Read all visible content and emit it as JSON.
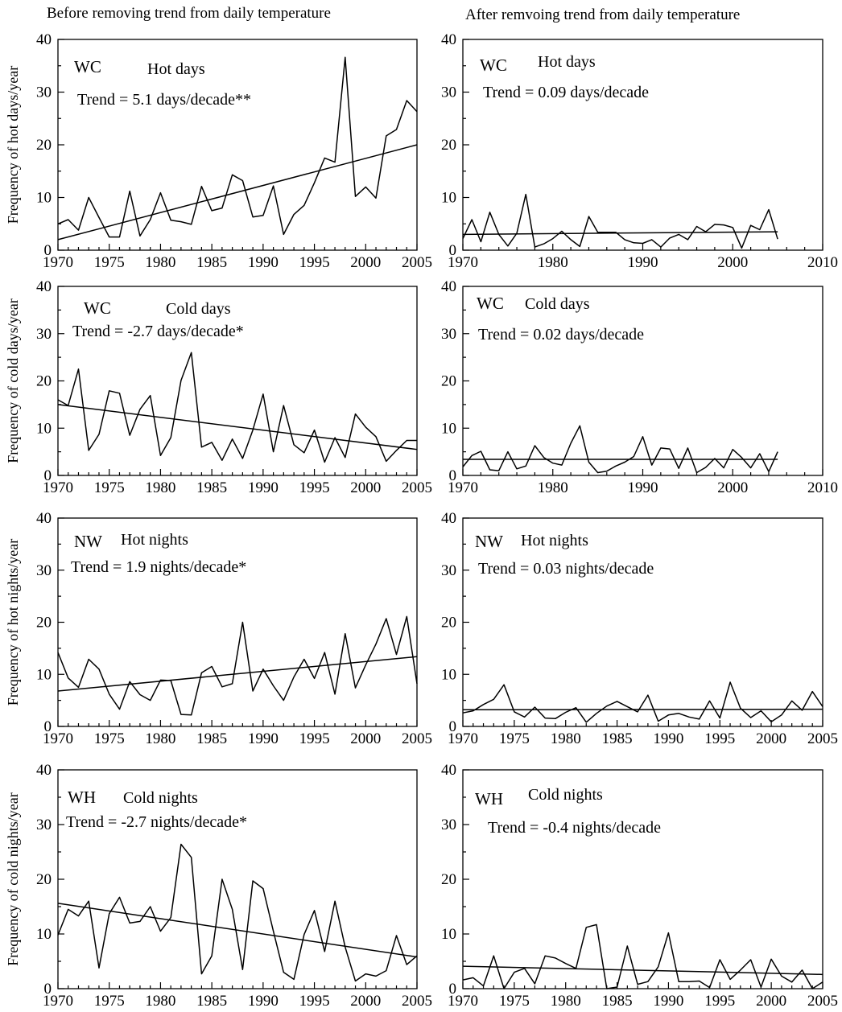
{
  "headers": {
    "left": "Before removing trend from daily temperature",
    "right": "After remvoing trend from daily temperature"
  },
  "chart_data": [
    {
      "type": "line",
      "region": "WC",
      "title": "Hot days",
      "trend_text": "Trend = 5.1 days/decade**",
      "ylabel": "Frequency of hot days/year",
      "xlim": [
        1970,
        2005
      ],
      "ylim": [
        0,
        40
      ],
      "xticks": [
        1970,
        1975,
        1980,
        1985,
        1990,
        1995,
        2000,
        2005
      ],
      "yticks": [
        0,
        10,
        20,
        30,
        40
      ],
      "x": [
        1970,
        1971,
        1972,
        1973,
        1974,
        1975,
        1976,
        1977,
        1978,
        1979,
        1980,
        1981,
        1982,
        1983,
        1984,
        1985,
        1986,
        1987,
        1988,
        1989,
        1990,
        1991,
        1992,
        1993,
        1994,
        1995,
        1996,
        1997,
        1998,
        1999,
        2000,
        2001,
        2002,
        2003,
        2004,
        2005
      ],
      "values": [
        5,
        5.8,
        3.8,
        10,
        6.2,
        2.5,
        2.5,
        11.2,
        2.7,
        5.8,
        10.9,
        5.7,
        5.4,
        4.9,
        12.1,
        7.5,
        8,
        14.3,
        13.2,
        6.3,
        6.6,
        12.2,
        3,
        6.8,
        8.5,
        12.8,
        17.5,
        16.7,
        36.6,
        10.2,
        12,
        9.9,
        21.7,
        22.9,
        28.4,
        26.3
      ],
      "trend_line": {
        "x": [
          1970,
          2005
        ],
        "y": [
          2,
          20
        ]
      }
    },
    {
      "type": "line",
      "region": "WC",
      "title": "Hot days",
      "trend_text": "Trend =  0.09 days/decade",
      "ylabel": "",
      "xlim": [
        1970,
        2010
      ],
      "ylim": [
        0,
        40
      ],
      "xticks": [
        1970,
        1980,
        1990,
        2000,
        2010
      ],
      "yticks": [
        0,
        10,
        20,
        30,
        40
      ],
      "x": [
        1970,
        1971,
        1972,
        1973,
        1974,
        1975,
        1976,
        1977,
        1978,
        1979,
        1980,
        1981,
        1982,
        1983,
        1984,
        1985,
        1986,
        1987,
        1988,
        1989,
        1990,
        1991,
        1992,
        1993,
        1994,
        1995,
        1996,
        1997,
        1998,
        1999,
        2000,
        2001,
        2002,
        2003,
        2004,
        2005
      ],
      "values": [
        2.2,
        5.8,
        1.6,
        7.2,
        3,
        0.8,
        3.2,
        10.6,
        0.6,
        1.2,
        2.2,
        3.6,
        2,
        0.7,
        6.4,
        3.4,
        3.4,
        3.4,
        2,
        1.4,
        1.3,
        2,
        0.6,
        2.3,
        3,
        2,
        4.5,
        3.5,
        4.9,
        4.8,
        4.3,
        0.4,
        4.7,
        3.9,
        7.7,
        2.1
      ],
      "trend_line": {
        "x": [
          1970,
          2005
        ],
        "y": [
          3,
          3.5
        ]
      }
    },
    {
      "type": "line",
      "region": "WC",
      "title": "Cold days",
      "trend_text": "Trend = -2.7 days/decade*",
      "ylabel": "Frequency of cold days/year",
      "xlim": [
        1970,
        2005
      ],
      "ylim": [
        0,
        40
      ],
      "xticks": [
        1970,
        1975,
        1980,
        1985,
        1990,
        1995,
        2000,
        2005
      ],
      "yticks": [
        0,
        10,
        20,
        30,
        40
      ],
      "x": [
        1970,
        1971,
        1972,
        1973,
        1974,
        1975,
        1976,
        1977,
        1978,
        1979,
        1980,
        1981,
        1982,
        1983,
        1984,
        1985,
        1986,
        1987,
        1988,
        1989,
        1990,
        1991,
        1992,
        1993,
        1994,
        1995,
        1996,
        1997,
        1998,
        1999,
        2000,
        2001,
        2002,
        2003,
        2004,
        2005
      ],
      "values": [
        16,
        14.8,
        22.5,
        5.3,
        8.7,
        17.9,
        17.4,
        8.5,
        14,
        16.9,
        4.2,
        8,
        20.1,
        26,
        6,
        7,
        3.2,
        7.7,
        3.6,
        9.6,
        17.2,
        5,
        14.8,
        6.5,
        4.8,
        9.6,
        2.8,
        8,
        3.8,
        13,
        10.2,
        8.2,
        3,
        5.3,
        7.4,
        7.4
      ],
      "trend_line": {
        "x": [
          1970,
          2005
        ],
        "y": [
          15,
          5.5
        ]
      }
    },
    {
      "type": "line",
      "region": "WC",
      "title": "Cold days",
      "trend_text": "Trend = 0.02 days/decade",
      "ylabel": "",
      "xlim": [
        1970,
        2010
      ],
      "ylim": [
        0,
        40
      ],
      "xticks": [
        1970,
        1980,
        1990,
        2000,
        2010
      ],
      "yticks": [
        0,
        10,
        20,
        30,
        40
      ],
      "x": [
        1970,
        1971,
        1972,
        1973,
        1974,
        1975,
        1976,
        1977,
        1978,
        1979,
        1980,
        1981,
        1982,
        1983,
        1984,
        1985,
        1986,
        1987,
        1988,
        1989,
        1990,
        1991,
        1992,
        1993,
        1994,
        1995,
        1996,
        1997,
        1998,
        1999,
        2000,
        2001,
        2002,
        2003,
        2004,
        2005
      ],
      "values": [
        1.8,
        4.2,
        5.1,
        1.2,
        1,
        5,
        1.4,
        2,
        6.3,
        3.8,
        2.6,
        2.2,
        6.8,
        10.5,
        2.8,
        0.6,
        0.9,
        2,
        2.8,
        4,
        8.2,
        2.2,
        5.8,
        5.6,
        1.5,
        5.8,
        0.6,
        1.7,
        3.6,
        1.6,
        5.5,
        3.8,
        1.6,
        4.6,
        0.8,
        5
      ],
      "trend_line": {
        "x": [
          1970,
          2005
        ],
        "y": [
          3.4,
          3.4
        ]
      }
    },
    {
      "type": "line",
      "region": "NW",
      "title": "Hot nights",
      "trend_text": "Trend =  1.9 nights/decade*",
      "ylabel": "Frequency of hot nights/year",
      "xlim": [
        1970,
        2005
      ],
      "ylim": [
        0,
        40
      ],
      "xticks": [
        1970,
        1975,
        1980,
        1985,
        1990,
        1995,
        2000,
        2005
      ],
      "yticks": [
        0,
        10,
        20,
        30,
        40
      ],
      "x": [
        1970,
        1971,
        1972,
        1973,
        1974,
        1975,
        1976,
        1977,
        1978,
        1979,
        1980,
        1981,
        1982,
        1983,
        1984,
        1985,
        1986,
        1987,
        1988,
        1989,
        1990,
        1991,
        1992,
        1993,
        1994,
        1995,
        1996,
        1997,
        1998,
        1999,
        2000,
        2001,
        2002,
        2003,
        2004,
        2005
      ],
      "values": [
        14.2,
        9.3,
        7.5,
        12.9,
        11,
        6.2,
        3.3,
        8.6,
        6.1,
        5,
        8.9,
        8.8,
        2.3,
        2.2,
        10.3,
        11.5,
        7.6,
        8.2,
        20,
        6.8,
        11,
        7.8,
        5,
        9.5,
        12.9,
        9.2,
        14.2,
        6.2,
        17.8,
        7.4,
        11.8,
        15.8,
        20.7,
        13.8,
        21.1,
        8.2
      ],
      "trend_line": {
        "x": [
          1970,
          2005
        ],
        "y": [
          6.8,
          13.4
        ]
      }
    },
    {
      "type": "line",
      "region": "NW",
      "title": "Hot nights",
      "trend_text": "Trend = 0.03 nights/decade",
      "ylabel": "",
      "xlim": [
        1970,
        2005
      ],
      "ylim": [
        0,
        40
      ],
      "xticks": [
        1970,
        1975,
        1980,
        1985,
        1990,
        1995,
        2000,
        2005
      ],
      "yticks": [
        0,
        10,
        20,
        30,
        40
      ],
      "x": [
        1970,
        1971,
        1972,
        1973,
        1974,
        1975,
        1976,
        1977,
        1978,
        1979,
        1980,
        1981,
        1982,
        1983,
        1984,
        1985,
        1986,
        1987,
        1988,
        1989,
        1990,
        1991,
        1992,
        1993,
        1994,
        1995,
        1996,
        1997,
        1998,
        1999,
        2000,
        2001,
        2002,
        2003,
        2004,
        2005
      ],
      "values": [
        2.6,
        3,
        4.2,
        5.2,
        8,
        2.8,
        1.8,
        3.7,
        1.6,
        1.5,
        2.7,
        3.6,
        0.8,
        2.5,
        3.9,
        4.8,
        3.8,
        2.8,
        6,
        1,
        2.2,
        2.5,
        1.8,
        1.4,
        4.9,
        1.6,
        8.5,
        3.5,
        1.7,
        3,
        0.9,
        2.2,
        4.9,
        3.1,
        6.7,
        3.8
      ],
      "trend_line": {
        "x": [
          1970,
          2005
        ],
        "y": [
          3.2,
          3.3
        ]
      }
    },
    {
      "type": "line",
      "region": "WH",
      "title": "Cold nights",
      "trend_text": "Trend =  -2.7 nights/decade*",
      "ylabel": "Frequency of cold nights/year",
      "xlim": [
        1970,
        2005
      ],
      "ylim": [
        0,
        40
      ],
      "xticks": [
        1970,
        1975,
        1980,
        1985,
        1990,
        1995,
        2000,
        2005
      ],
      "yticks": [
        0,
        10,
        20,
        30,
        40
      ],
      "x": [
        1970,
        1971,
        1972,
        1973,
        1974,
        1975,
        1976,
        1977,
        1978,
        1979,
        1980,
        1981,
        1982,
        1983,
        1984,
        1985,
        1986,
        1987,
        1988,
        1989,
        1990,
        1991,
        1992,
        1993,
        1994,
        1995,
        1996,
        1997,
        1998,
        1999,
        2000,
        2001,
        2002,
        2003,
        2004,
        2005
      ],
      "values": [
        9.8,
        14.5,
        13.3,
        16,
        3.8,
        13.7,
        16.7,
        12,
        12.3,
        15,
        10.5,
        13,
        26.4,
        24,
        2.7,
        6,
        20,
        14.5,
        3.5,
        19.7,
        18.3,
        10.5,
        3,
        1.7,
        9.9,
        14.3,
        6.8,
        16,
        7.6,
        1.4,
        2.7,
        2.3,
        3.3,
        9.7,
        4.4,
        6
      ],
      "trend_line": {
        "x": [
          1970,
          2005
        ],
        "y": [
          15.6,
          5.8
        ]
      }
    },
    {
      "type": "line",
      "region": "WH",
      "title": "Cold nights",
      "trend_text": "Trend =  -0.4 nights/decade",
      "ylabel": "",
      "xlim": [
        1970,
        2005
      ],
      "ylim": [
        0,
        40
      ],
      "xticks": [
        1970,
        1975,
        1980,
        1985,
        1990,
        1995,
        2000,
        2005
      ],
      "yticks": [
        0,
        10,
        20,
        30,
        40
      ],
      "x": [
        1970,
        1971,
        1972,
        1973,
        1974,
        1975,
        1976,
        1977,
        1978,
        1979,
        1980,
        1981,
        1982,
        1983,
        1984,
        1985,
        1986,
        1987,
        1988,
        1989,
        1990,
        1991,
        1992,
        1993,
        1994,
        1995,
        1996,
        1997,
        1998,
        1999,
        2000,
        2001,
        2002,
        2003,
        2004,
        2005
      ],
      "values": [
        1.6,
        2,
        0.5,
        6,
        0,
        3,
        3.7,
        0.9,
        6,
        5.6,
        4.6,
        3.7,
        11.2,
        11.7,
        0,
        0.3,
        7.8,
        0.8,
        1.3,
        4,
        10.2,
        1.3,
        1.3,
        1.4,
        0.2,
        5.3,
        1.7,
        3.4,
        5.3,
        0.3,
        5.4,
        2.3,
        1.2,
        3.4,
        0,
        1.2
      ],
      "trend_line": {
        "x": [
          1970,
          2005
        ],
        "y": [
          4.1,
          2.6
        ]
      }
    }
  ]
}
